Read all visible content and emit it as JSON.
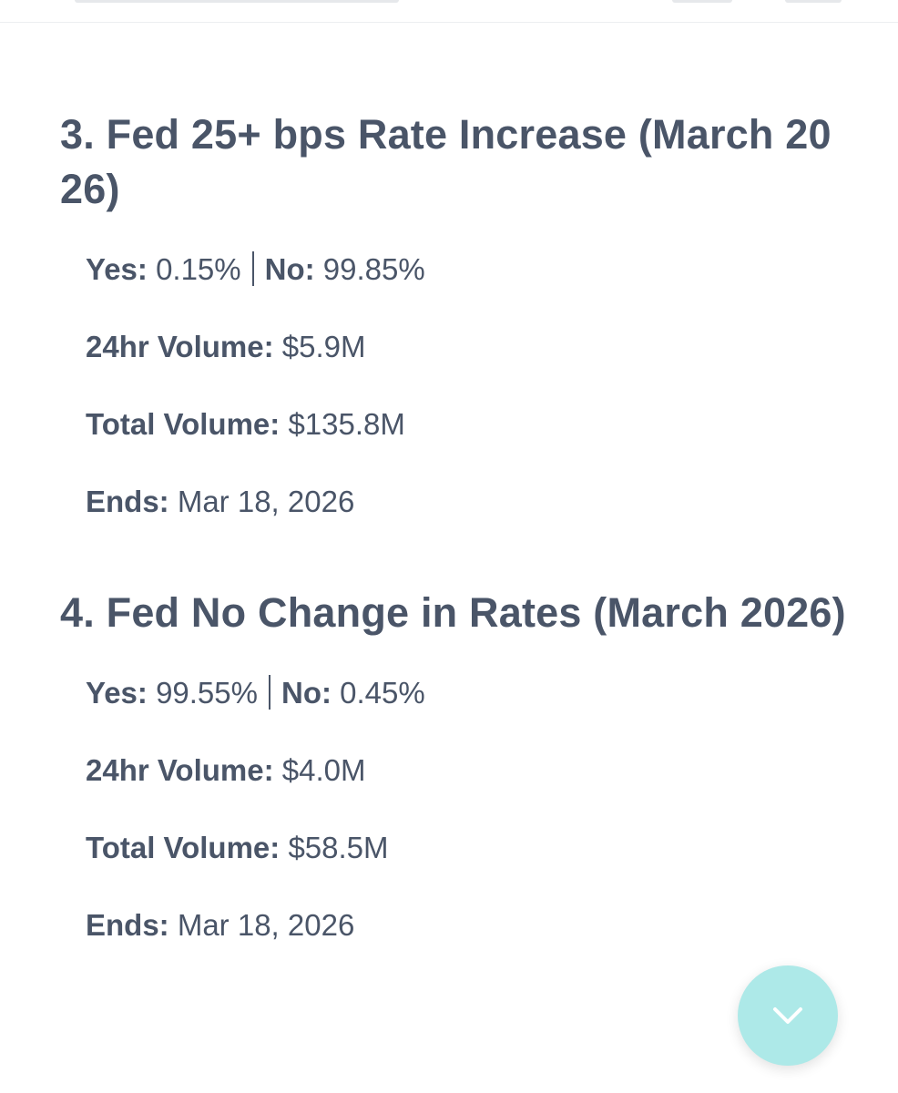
{
  "markets": [
    {
      "title": "3. Fed 25+ bps Rate Increase (March 2026)",
      "yes_label": "Yes:",
      "yes_value": "0.15%",
      "no_label": "No:",
      "no_value": "99.85%",
      "volume_24h_label": "24hr Volume:",
      "volume_24h_value": "$5.9M",
      "total_volume_label": "Total Volume:",
      "total_volume_value": "$135.8M",
      "ends_label": "Ends:",
      "ends_value": "Mar 18, 2026"
    },
    {
      "title": "4. Fed No Change in Rates (March 2026)",
      "yes_label": "Yes:",
      "yes_value": "99.55%",
      "no_label": "No:",
      "no_value": "0.45%",
      "volume_24h_label": "24hr Volume:",
      "volume_24h_value": "$4.0M",
      "total_volume_label": "Total Volume:",
      "total_volume_value": "$58.5M",
      "ends_label": "Ends:",
      "ends_value": "Mar 18, 2026"
    }
  ],
  "scroll_button": {
    "icon": "chevron-down-icon",
    "color": "#ade9e8"
  },
  "colors": {
    "text": "#4a5568",
    "background": "#ffffff"
  }
}
